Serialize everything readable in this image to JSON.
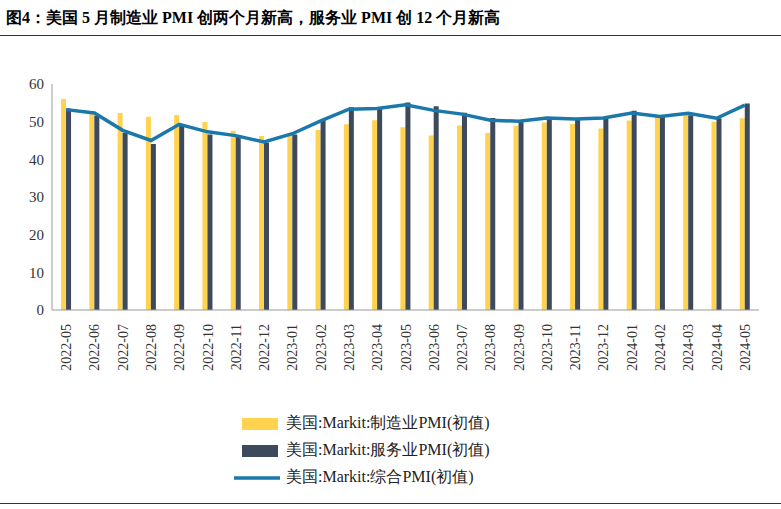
{
  "chart_data": {
    "type": "bar",
    "title": "图4：美国 5 月制造业 PMI 创两个月新高，服务业 PMI 创 12 个月新高",
    "categories": [
      "2022-05",
      "2022-06",
      "2022-07",
      "2022-08",
      "2022-09",
      "2022-10",
      "2022-11",
      "2022-12",
      "2023-01",
      "2023-02",
      "2023-03",
      "2023-04",
      "2023-05",
      "2023-06",
      "2023-07",
      "2023-08",
      "2023-09",
      "2023-10",
      "2023-11",
      "2023-12",
      "2024-01",
      "2024-02",
      "2024-03",
      "2024-04",
      "2024-05"
    ],
    "series": [
      {
        "name": "美国:Markit:制造业PMI(初值)",
        "type": "bar",
        "color": "#ffd24f",
        "values": [
          56.0,
          52.4,
          52.3,
          51.3,
          51.8,
          49.9,
          47.6,
          46.2,
          46.8,
          47.8,
          49.3,
          50.4,
          48.5,
          46.3,
          49.0,
          47.0,
          48.9,
          49.8,
          49.4,
          48.2,
          50.3,
          51.5,
          52.5,
          50.0,
          50.9
        ]
      },
      {
        "name": "美国:Markit:服务业PMI(初值)",
        "type": "bar",
        "color": "#3d4a5c",
        "values": [
          53.5,
          51.6,
          47.0,
          44.1,
          49.2,
          46.6,
          46.1,
          44.4,
          46.6,
          50.5,
          53.8,
          53.7,
          55.1,
          54.1,
          52.4,
          51.0,
          50.2,
          50.9,
          50.8,
          51.0,
          52.9,
          51.3,
          51.7,
          50.9,
          54.8
        ]
      },
      {
        "name": "美国:Markit:综合PMI(初值)",
        "type": "line",
        "color": "#1a78ab",
        "values": [
          53.2,
          52.3,
          47.7,
          45.0,
          49.3,
          47.3,
          46.3,
          44.6,
          46.8,
          50.2,
          53.3,
          53.5,
          54.5,
          53.0,
          52.0,
          50.4,
          50.1,
          51.0,
          50.7,
          51.0,
          52.3,
          51.4,
          52.2,
          50.9,
          54.4
        ]
      }
    ],
    "ylim": [
      0,
      60
    ],
    "yticks": [
      0,
      10,
      20,
      30,
      40,
      50,
      60
    ],
    "grid": false,
    "legend": "bottom"
  }
}
